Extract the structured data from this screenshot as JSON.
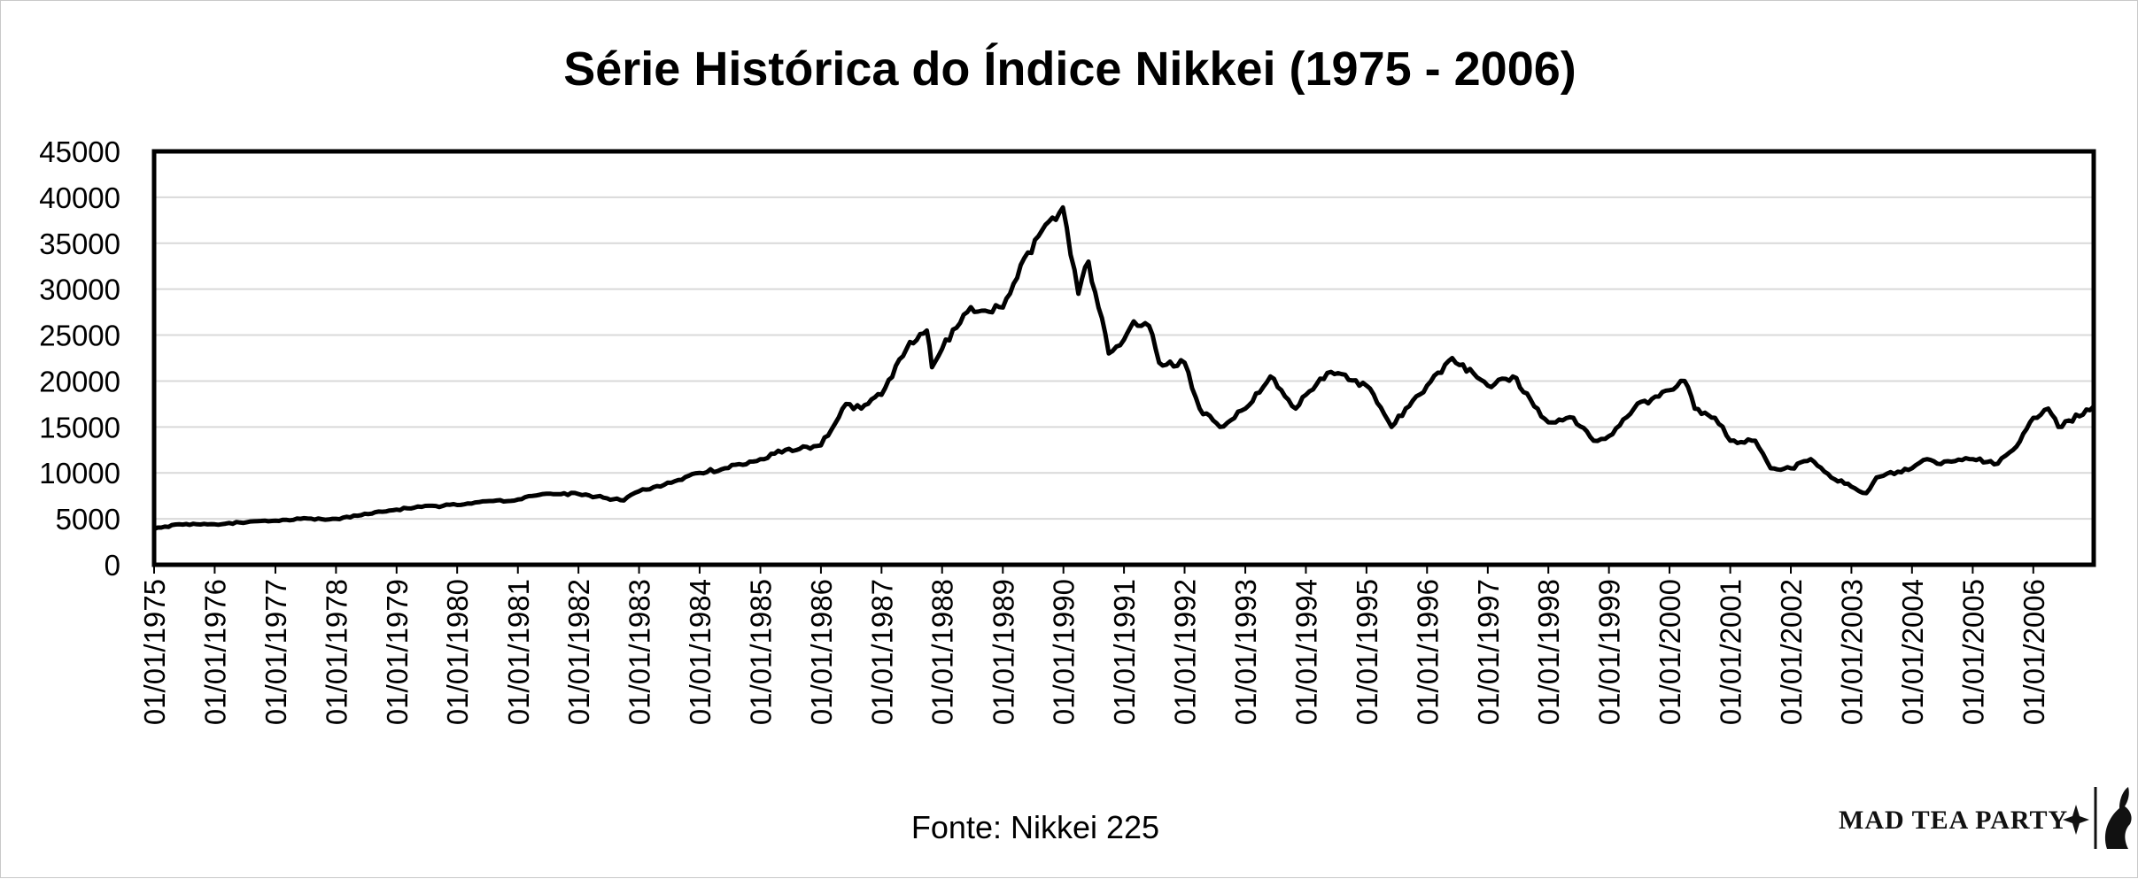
{
  "chart_data": {
    "type": "line",
    "title": "Série Histórica do Índice Nikkei (1975 - 2006)",
    "xlabel": "",
    "ylabel": "",
    "ylim": [
      0,
      45000
    ],
    "yticks": [
      0,
      5000,
      10000,
      15000,
      20000,
      25000,
      30000,
      35000,
      40000,
      45000
    ],
    "xlim": [
      "1975-01-01",
      "2006-12-31"
    ],
    "xticks": [
      "01/01/1975",
      "01/01/1976",
      "01/01/1977",
      "01/01/1978",
      "01/01/1979",
      "01/01/1980",
      "01/01/1981",
      "01/01/1982",
      "01/01/1983",
      "01/01/1984",
      "01/01/1985",
      "01/01/1986",
      "01/01/1987",
      "01/01/1988",
      "01/01/1989",
      "01/01/1990",
      "01/01/1991",
      "01/01/1992",
      "01/01/1993",
      "01/01/1994",
      "01/01/1995",
      "01/01/1996",
      "01/01/1997",
      "01/01/1998",
      "01/01/1999",
      "01/01/2000",
      "01/01/2001",
      "01/01/2002",
      "01/01/2003",
      "01/01/2004",
      "01/01/2005",
      "01/01/2006"
    ],
    "grid": true,
    "legend": "none",
    "series": [
      {
        "color": "#000000",
        "x": [
          "1975-01-01",
          "1975-06-01",
          "1976-01-01",
          "1976-06-01",
          "1977-01-01",
          "1977-06-01",
          "1978-01-01",
          "1978-06-01",
          "1979-01-01",
          "1979-06-01",
          "1980-01-01",
          "1980-06-01",
          "1981-01-01",
          "1981-06-01",
          "1982-01-01",
          "1982-06-01",
          "1982-10-01",
          "1983-01-01",
          "1983-06-01",
          "1984-01-01",
          "1984-06-01",
          "1985-01-01",
          "1985-06-01",
          "1986-01-01",
          "1986-06-01",
          "1986-09-01",
          "1987-01-01",
          "1987-06-01",
          "1987-10-01",
          "1987-11-01",
          "1988-01-01",
          "1988-06-01",
          "1989-01-01",
          "1989-06-01",
          "1989-12-29",
          "1990-04-01",
          "1990-06-01",
          "1990-10-01",
          "1991-01-01",
          "1991-03-01",
          "1991-06-01",
          "1991-08-01",
          "1992-01-01",
          "1992-04-01",
          "1992-08-01",
          "1993-01-01",
          "1993-06-01",
          "1993-11-01",
          "1994-01-01",
          "1994-06-01",
          "1995-01-01",
          "1995-06-01",
          "1996-01-01",
          "1996-06-01",
          "1997-01-01",
          "1997-06-01",
          "1998-01-01",
          "1998-06-01",
          "1998-10-01",
          "1999-01-01",
          "1999-06-01",
          "2000-01-01",
          "2000-04-01",
          "2000-06-01",
          "2000-10-01",
          "2001-01-01",
          "2001-06-01",
          "2001-09-01",
          "2002-01-01",
          "2002-05-01",
          "2002-09-01",
          "2003-01-01",
          "2003-04-01",
          "2003-06-01",
          "2004-01-01",
          "2004-04-01",
          "2004-06-01",
          "2005-01-01",
          "2005-06-01",
          "2005-09-01",
          "2006-01-01",
          "2006-04-01",
          "2006-06-01",
          "2006-12-29"
        ],
        "y": [
          3900,
          4400,
          4400,
          4600,
          4800,
          5000,
          5000,
          5400,
          6000,
          6300,
          6500,
          6900,
          7100,
          7700,
          7700,
          7300,
          7000,
          8000,
          8700,
          10000,
          10500,
          11500,
          12500,
          13000,
          17500,
          17000,
          18500,
          23500,
          25500,
          21500,
          23500,
          27500,
          28000,
          34000,
          38900,
          29500,
          33000,
          23000,
          24500,
          26500,
          26000,
          22000,
          22000,
          17000,
          15000,
          17000,
          20500,
          17000,
          18500,
          21000,
          19500,
          15000,
          19500,
          22500,
          19500,
          20500,
          15500,
          16000,
          13500,
          14000,
          17000,
          19000,
          20000,
          17000,
          16000,
          13500,
          13500,
          10500,
          10500,
          11500,
          9500,
          8500,
          7800,
          9500,
          10500,
          11500,
          11000,
          11500,
          11000,
          12500,
          16000,
          17000,
          15000,
          17200
        ]
      }
    ]
  },
  "source": "Fonte: Nikkei 225",
  "logo": "MAD TEA PARTY"
}
